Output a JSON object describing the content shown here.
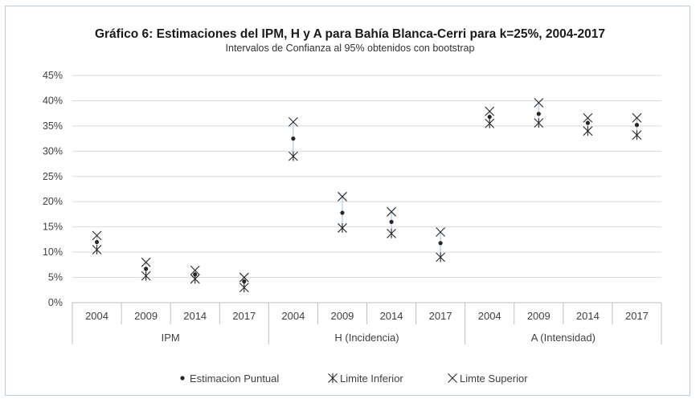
{
  "chart_data": {
    "type": "scatter",
    "title": "Gráfico 6: Estimaciones del IPM, H y A para Bahía Blanca-Cerri para k=25%, 2004-2017",
    "subtitle": "Intervalos de Confianza al 95% obtenidos con bootstrap",
    "ylim": [
      0,
      45
    ],
    "yticks": [
      "0%",
      "5%",
      "10%",
      "15%",
      "20%",
      "25%",
      "30%",
      "35%",
      "40%",
      "45%"
    ],
    "ytick_values": [
      0,
      5,
      10,
      15,
      20,
      25,
      30,
      35,
      40,
      45
    ],
    "grid": true,
    "legend_position": "bottom",
    "groups": [
      {
        "label": "IPM",
        "categories": [
          "2004",
          "2009",
          "2014",
          "2017"
        ]
      },
      {
        "label": "H (Incidencia)",
        "categories": [
          "2004",
          "2009",
          "2014",
          "2017"
        ]
      },
      {
        "label": "A (Intensidad)",
        "categories": [
          "2004",
          "2009",
          "2014",
          "2017"
        ]
      }
    ],
    "series": [
      {
        "name": "Estimacion Puntual",
        "marker": "dot",
        "values": [
          12.0,
          6.7,
          5.6,
          4.2,
          32.5,
          17.8,
          16.0,
          11.8,
          36.8,
          37.4,
          35.6,
          35.2
        ]
      },
      {
        "name": "Limite Inferior",
        "marker": "asterisk",
        "values": [
          10.5,
          5.3,
          4.7,
          3.0,
          29.0,
          14.8,
          13.7,
          9.0,
          35.5,
          35.6,
          34.0,
          33.2
        ]
      },
      {
        "name": "Limte Superior",
        "marker": "x",
        "values": [
          13.3,
          8.0,
          6.4,
          5.0,
          35.8,
          21.0,
          18.0,
          14.0,
          37.9,
          39.6,
          36.6,
          36.6
        ]
      }
    ],
    "colors": {
      "grid": "#d9d9d9",
      "axis": "#bfbfbf",
      "marker": "#262626",
      "whisker": "#9dc3e6"
    }
  }
}
